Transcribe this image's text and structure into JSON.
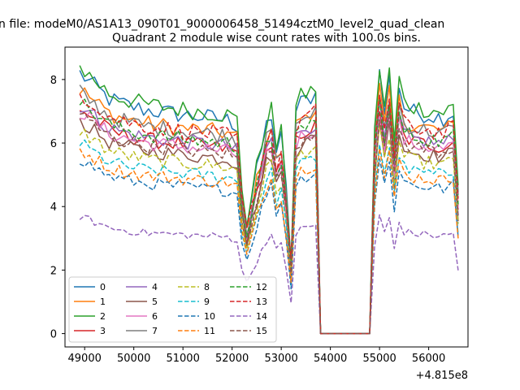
{
  "figure": {
    "suptitle": "n file: modeM0/AS1A13_090T01_9000006458_51494cztM0_level2_quad_clean",
    "title": "Quadrant 2 module wise count rates with 100.0s bins."
  },
  "chart_data": {
    "type": "line",
    "title": "Quadrant 2 module wise count rates with 100.0s bins.",
    "xlabel": "",
    "ylabel": "",
    "x_offset_label": "+4.815e8",
    "x_offset": 481500000,
    "xlim": [
      48600,
      56800
    ],
    "ylim": [
      -0.42,
      9.02
    ],
    "xticks": [
      49000,
      50000,
      51000,
      52000,
      53000,
      54000,
      55000,
      56000
    ],
    "xtick_labels": [
      "49000",
      "50000",
      "51000",
      "52000",
      "53000",
      "54000",
      "55000",
      "56000"
    ],
    "yticks": [
      0,
      2,
      4,
      6,
      8
    ],
    "ytick_labels": [
      "0",
      "2",
      "4",
      "6",
      "8"
    ],
    "grid": false,
    "legend": {
      "placement": "lower-left",
      "columns": 4
    },
    "x_range": [
      48900,
      56600
    ],
    "x_step": 100,
    "profile": {
      "knots": [
        48900,
        49200,
        49500,
        49800,
        50200,
        50600,
        51000,
        51500,
        51900,
        52100,
        52200,
        52300,
        52500,
        52700,
        52800,
        52900,
        53000,
        53100,
        53200,
        53300,
        53350,
        53500,
        53700,
        53800,
        54850,
        54900,
        55000,
        55100,
        55200,
        55300,
        55400,
        55500,
        55700,
        56000,
        56300,
        56500,
        56600
      ],
      "values": [
        1.0,
        0.95,
        0.9,
        0.88,
        0.86,
        0.85,
        0.84,
        0.83,
        0.82,
        0.8,
        0.55,
        0.42,
        0.62,
        0.8,
        0.84,
        0.7,
        0.75,
        0.55,
        0.28,
        0.85,
        0.88,
        0.9,
        0.92,
        0.0,
        0.0,
        0.75,
        1.0,
        0.85,
        0.98,
        0.72,
        0.95,
        0.87,
        0.85,
        0.84,
        0.83,
        0.85,
        0.55
      ]
    },
    "series": [
      {
        "name": "0",
        "color": "#1f77b4",
        "style": "solid",
        "level": 8.2
      },
      {
        "name": "1",
        "color": "#ff7f0e",
        "style": "solid",
        "level": 7.7
      },
      {
        "name": "2",
        "color": "#2ca02c",
        "style": "solid",
        "level": 8.4
      },
      {
        "name": "3",
        "color": "#d62728",
        "style": "solid",
        "level": 7.1
      },
      {
        "name": "4",
        "color": "#9467bd",
        "style": "solid",
        "level": 7.2
      },
      {
        "name": "5",
        "color": "#8c564b",
        "style": "solid",
        "level": 6.7
      },
      {
        "name": "6",
        "color": "#e377c2",
        "style": "solid",
        "level": 7.0
      },
      {
        "name": "7",
        "color": "#7f7f7f",
        "style": "solid",
        "level": 7.6
      },
      {
        "name": "8",
        "color": "#bcbd22",
        "style": "dashed",
        "level": 6.4
      },
      {
        "name": "9",
        "color": "#17becf",
        "style": "dashed",
        "level": 6.0
      },
      {
        "name": "10",
        "color": "#1f77b4",
        "style": "dashed",
        "level": 5.5
      },
      {
        "name": "11",
        "color": "#ff7f0e",
        "style": "dashed",
        "level": 5.8
      },
      {
        "name": "12",
        "color": "#2ca02c",
        "style": "dashed",
        "level": 7.3
      },
      {
        "name": "13",
        "color": "#d62728",
        "style": "dashed",
        "level": 7.6
      },
      {
        "name": "14",
        "color": "#9467bd",
        "style": "dashed",
        "level": 3.7
      },
      {
        "name": "15",
        "color": "#8c564b",
        "style": "dashed",
        "level": 6.9
      }
    ]
  }
}
